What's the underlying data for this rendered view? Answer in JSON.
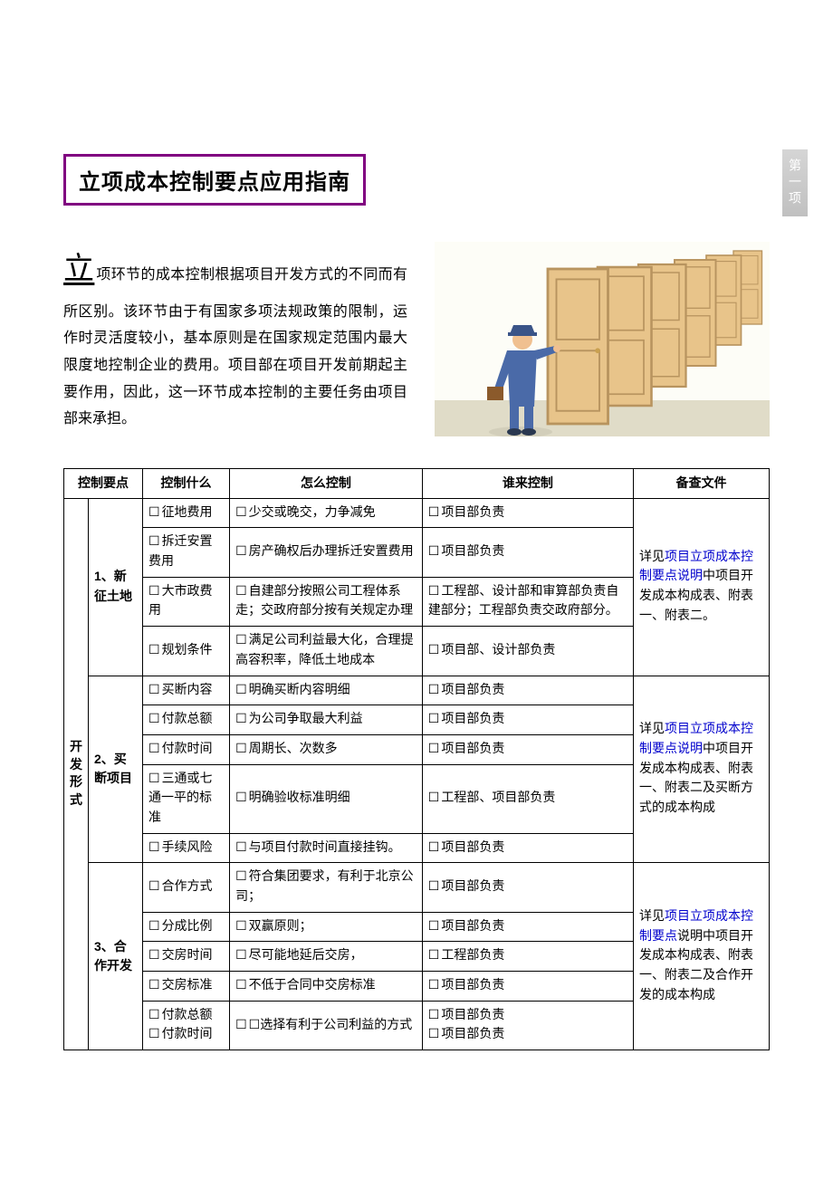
{
  "side_tab": "第一项",
  "title": "立项成本控制要点应用指南",
  "intro": {
    "dropcap": "立",
    "body": "项环节的成本控制根据项目开发方式的不同而有所区别。该环节由于有国家多项法规政策的限制，运作时灵活度较小，基本原则是在国家规定范围内最大限度地控制企业的费用。项目部在项目开发前期起主要作用，因此，这一环节成本控制的主要任务由项目部来承担。"
  },
  "image_alt": "man-knocking-doors-illustration",
  "colors": {
    "title_border": "#800080",
    "link": "#0000cc",
    "table_border": "#000000",
    "page_bg": "#ffffff",
    "text": "#000000",
    "sidetab_bg_top": "#d5d5d5",
    "sidetab_bg_bottom": "#c0c0c0",
    "sidetab_text": "#ffffff",
    "door_fill": "#e8c48a",
    "door_stroke": "#b8945f",
    "man_suit": "#4a6aa8",
    "man_hat": "#3a5488",
    "briefcase": "#8b5a2b",
    "floor": "#e0dcc8"
  },
  "table": {
    "headers": [
      "控制要点",
      "控制什么",
      "怎么控制",
      "谁来控制",
      "备查文件"
    ],
    "group_header": "开发形式",
    "sections": [
      {
        "name": "1、新征土地",
        "ref_prefix": "详见",
        "ref_link": "项目立项成本控制要点说明",
        "ref_suffix": "中项目开发成本构成表、附表一、附表二。",
        "rows": [
          {
            "what": "征地费用",
            "how": "少交或晚交，力争减免",
            "who": "项目部负责"
          },
          {
            "what": "拆迁安置费用",
            "how": "房产确权后办理拆迁安置费用",
            "who": "项目部负责"
          },
          {
            "what": "大市政费用",
            "how": "自建部分按照公司工程体系走；交政府部分按有关规定办理",
            "who": "工程部、设计部和审算部负责自建部分；工程部负责交政府部分。"
          },
          {
            "what": "规划条件",
            "how": "满足公司利益最大化，合理提高容积率，降低土地成本",
            "who": "项目部、设计部负责"
          }
        ]
      },
      {
        "name": "2、买断项目",
        "ref_prefix": "详见",
        "ref_link": "项目立项成本控制要点说明",
        "ref_suffix": "中项目开发成本构成表、附表一、附表二及买断方式的成本构成",
        "rows": [
          {
            "what": "买断内容",
            "how": "明确买断内容明细",
            "who": "项目部负责"
          },
          {
            "what": "付款总额",
            "how": "为公司争取最大利益",
            "who": "项目部负责"
          },
          {
            "what": "付款时间",
            "how": "周期长、次数多",
            "who": "项目部负责"
          },
          {
            "what": "三通或七通一平的标准",
            "how": "明确验收标准明细",
            "who": "工程部、项目部负责"
          },
          {
            "what": "手续风险",
            "how": "与项目付款时间直接挂钩。",
            "who": "项目部负责"
          }
        ]
      },
      {
        "name": "3、合作开发",
        "ref_prefix": "详见",
        "ref_link": "项目立项成本控制要点",
        "ref_suffix": "说明中项目开发成本构成表、附表一、附表二及合作开发的成本构成",
        "rows": [
          {
            "what": "合作方式",
            "how": "符合集团要求，有利于北京公司；",
            "who": "项目部负责"
          },
          {
            "what": "分成比例",
            "how": "双赢原则；",
            "who": "项目部负责"
          },
          {
            "what": "交房时间",
            "how": "尽可能地延后交房，",
            "who": "工程部负责"
          },
          {
            "what": "交房标准",
            "how": "不低于合同中交房标准",
            "who": "项目部负责"
          },
          {
            "what2": [
              "付款总额",
              "付款时间"
            ],
            "how2": "☐选择有利于公司利益的方式",
            "who2": [
              "项目部负责",
              "项目部负责"
            ]
          }
        ]
      }
    ]
  }
}
